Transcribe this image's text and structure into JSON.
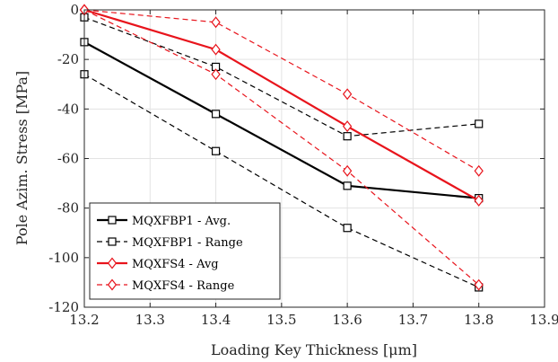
{
  "chart_data": {
    "type": "line",
    "title": "",
    "xlabel": "Loading Key Thickness [μm]",
    "ylabel": "Pole Azim. Stress [MPa]",
    "xlim": [
      13.2,
      13.9
    ],
    "ylim": [
      -120,
      0
    ],
    "xticks": [
      13.2,
      13.3,
      13.4,
      13.5,
      13.6,
      13.7,
      13.8,
      13.9
    ],
    "yticks": [
      0,
      -20,
      -40,
      -60,
      -80,
      -100,
      -120
    ],
    "grid": true,
    "legend_position": "bottom-left",
    "series": [
      {
        "name": "MQXFBP1 - Avg.",
        "color": "#000000",
        "style": "solid",
        "marker": "square",
        "width": 2.2,
        "x": [
          13.2,
          13.4,
          13.6,
          13.8
        ],
        "y": [
          -13,
          -42,
          -71,
          -76
        ]
      },
      {
        "name": "MQXFBP1 - Range",
        "color": "#000000",
        "style": "dashed",
        "marker": "square",
        "width": 1.2,
        "x": [
          13.2,
          13.4,
          13.6,
          13.8
        ],
        "y": [
          -3,
          -23,
          -51,
          -46
        ]
      },
      {
        "name": "",
        "color": "#000000",
        "style": "dashed",
        "marker": "square",
        "width": 1.2,
        "legend": false,
        "x": [
          13.2,
          13.4,
          13.6,
          13.8
        ],
        "y": [
          -26,
          -57,
          -88,
          -112
        ]
      },
      {
        "name": "MQXFS4 - Avg",
        "color": "#e8141c",
        "style": "solid",
        "marker": "diamond",
        "width": 2.2,
        "x": [
          13.2,
          13.4,
          13.6,
          13.8
        ],
        "y": [
          0,
          -16,
          -47,
          -77
        ]
      },
      {
        "name": "MQXFS4 - Range",
        "color": "#e8141c",
        "style": "dashed",
        "marker": "diamond",
        "width": 1.2,
        "x": [
          13.2,
          13.4,
          13.6,
          13.8
        ],
        "y": [
          0,
          -5,
          -34,
          -65
        ]
      },
      {
        "name": "",
        "color": "#e8141c",
        "style": "dashed",
        "marker": "diamond",
        "width": 1.2,
        "legend": false,
        "x": [
          13.2,
          13.4,
          13.6,
          13.8
        ],
        "y": [
          0,
          -26,
          -65,
          -111
        ]
      }
    ]
  }
}
